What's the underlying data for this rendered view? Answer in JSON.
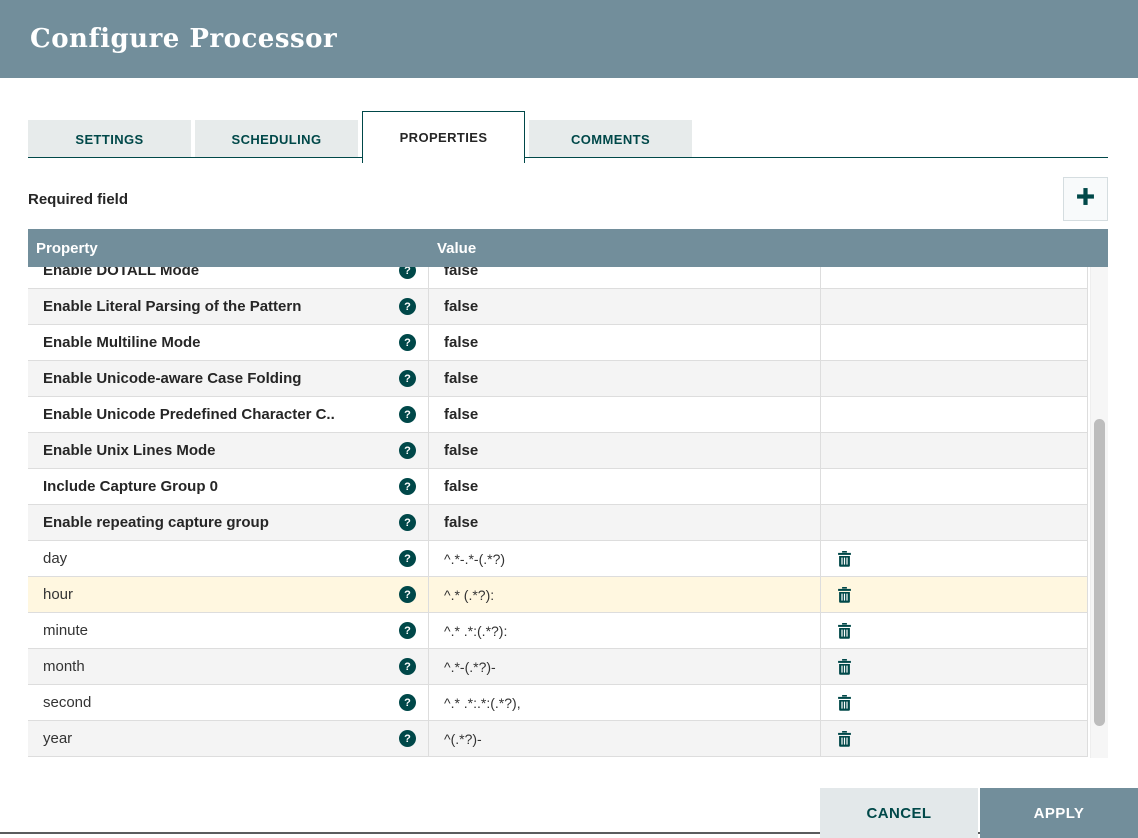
{
  "dialog": {
    "title": "Configure Processor"
  },
  "tabs": [
    {
      "label": "SETTINGS",
      "active": false
    },
    {
      "label": "SCHEDULING",
      "active": false
    },
    {
      "label": "PROPERTIES",
      "active": true
    },
    {
      "label": "COMMENTS",
      "active": false
    }
  ],
  "properties_panel": {
    "required_label": "Required field",
    "table": {
      "columns": [
        "Property",
        "Value"
      ],
      "rows": [
        {
          "property": "Enable DOTALL Mode",
          "value": "false",
          "required": true,
          "deletable": false
        },
        {
          "property": "Enable Literal Parsing of the Pattern",
          "value": "false",
          "required": true,
          "deletable": false
        },
        {
          "property": "Enable Multiline Mode",
          "value": "false",
          "required": true,
          "deletable": false
        },
        {
          "property": "Enable Unicode-aware Case Folding",
          "value": "false",
          "required": true,
          "deletable": false
        },
        {
          "property": "Enable Unicode Predefined Character C..",
          "value": "false",
          "required": true,
          "deletable": false
        },
        {
          "property": "Enable Unix Lines Mode",
          "value": "false",
          "required": true,
          "deletable": false
        },
        {
          "property": "Include Capture Group 0",
          "value": "false",
          "required": true,
          "deletable": false
        },
        {
          "property": "Enable repeating capture group",
          "value": "false",
          "required": true,
          "deletable": false
        },
        {
          "property": "day",
          "value": "^.*-.*-(.*?)",
          "required": false,
          "deletable": true
        },
        {
          "property": "hour",
          "value": "^.* (.*?):",
          "required": false,
          "deletable": true,
          "highlighted": true
        },
        {
          "property": "minute",
          "value": "^.* .*:(.*?):",
          "required": false,
          "deletable": true
        },
        {
          "property": "month",
          "value": "^.*-(.*?)-",
          "required": false,
          "deletable": true
        },
        {
          "property": "second",
          "value": "^.* .*:.*:(.*?),",
          "required": false,
          "deletable": true
        },
        {
          "property": "year",
          "value": "^(.*?)-",
          "required": false,
          "deletable": true
        }
      ]
    }
  },
  "icons": {
    "help_glyph": "?",
    "add_icon": "plus",
    "delete_icon": "trash"
  },
  "footer": {
    "cancel_label": "CANCEL",
    "apply_label": "APPLY"
  },
  "colors": {
    "header_bg": "#728e9b",
    "accent_teal": "#004849",
    "tab_inactive_bg": "#e7ebeb",
    "row_alt_bg": "#f4f4f4",
    "row_highlight_bg": "#fff7e0",
    "border_light": "#dddddd",
    "apply_bg": "#728e9b",
    "cancel_bg": "#e3e8ea"
  }
}
